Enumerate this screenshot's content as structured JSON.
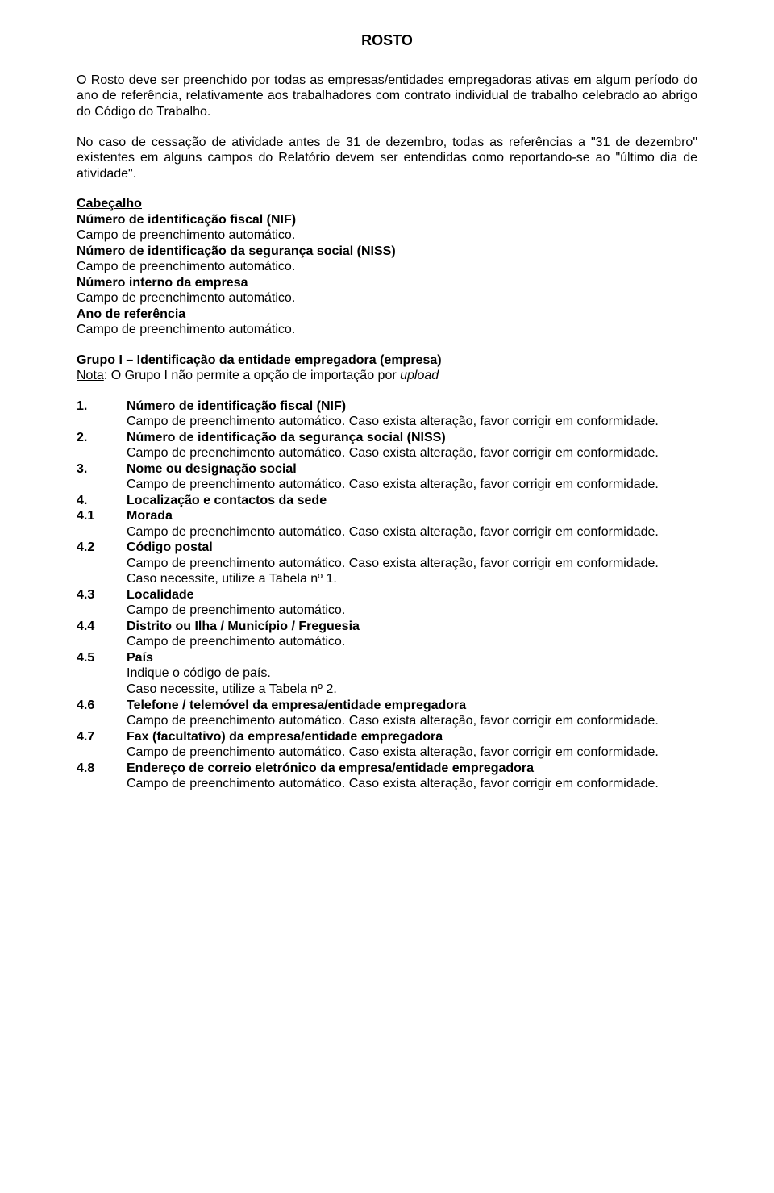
{
  "title": "ROSTO",
  "intro_p1": "O Rosto deve ser preenchido por todas as empresas/entidades empregadoras ativas em algum período do ano de referência, relativamente aos trabalhadores com contrato individual de trabalho celebrado ao abrigo do Código do Trabalho.",
  "intro_p2": "No caso de cessação de atividade antes de 31 de dezembro, todas as referências a \"31 de dezembro\" existentes em alguns campos do Relatório devem ser entendidas como reportando-se ao \"último dia de atividade\".",
  "cabecalho": {
    "label": "Cabeçalho",
    "l1b": "Número de identificação fiscal (NIF)",
    "l1d": "Campo de preenchimento automático.",
    "l2b": "Número de identificação da segurança social (NISS)",
    "l2d": "Campo de preenchimento automático.",
    "l3b": "Número interno da empresa",
    "l3d": "Campo de preenchimento automático.",
    "l4b": "Ano de referência",
    "l4d": "Campo de preenchimento automático."
  },
  "grupo": {
    "title": "Grupo I – Identificação da entidade empregadora (empresa)",
    "nota": "Nota",
    "nota_rest": ": O Grupo I não permite a opção de importação por ",
    "upload": "upload"
  },
  "auto_just": "Campo de preenchimento automático. Caso exista alteração, favor corrigir em conformidade.",
  "auto_plain": "Campo de preenchimento automático.",
  "tab1": "Caso necessite, utilize a Tabela nº 1.",
  "tab2": "Caso necessite, utilize a Tabela nº 2.",
  "pais_line": "Indique o código de país.",
  "items": {
    "n1": "1.",
    "t1": "Número de identificação fiscal (NIF)",
    "n2": "2.",
    "t2": "Número de identificação da segurança social (NISS)",
    "n3": "3.",
    "t3": "Nome ou designação social",
    "n4": "4.",
    "t4": "Localização e contactos da sede",
    "n41": "4.1",
    "t41": "Morada",
    "n42": "4.2",
    "t42": "Código postal",
    "n43": "4.3",
    "t43": "Localidade",
    "n44": "4.4",
    "t44": "Distrito ou Ilha / Município / Freguesia",
    "n45": "4.5",
    "t45": "País",
    "n46": "4.6",
    "t46": "Telefone / telemóvel da empresa/entidade empregadora",
    "n47": "4.7",
    "t47": "Fax (facultativo) da empresa/entidade empregadora",
    "n48": "4.8",
    "t48": "Endereço de correio eletrónico da empresa/entidade empregadora"
  }
}
